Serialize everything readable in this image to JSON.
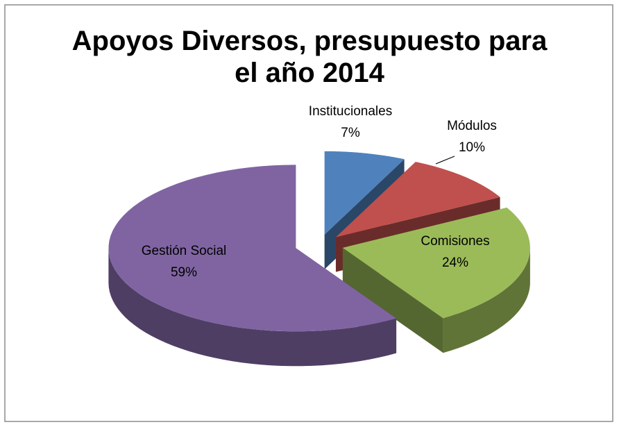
{
  "chart_data": {
    "type": "pie",
    "title": "Apoyos Diversos, presupuesto para el año 2014",
    "categories": [
      "Institucionales",
      "Módulos",
      "Comisiones",
      "Gestión Social"
    ],
    "values": [
      7,
      10,
      24,
      59
    ],
    "value_labels": [
      "7%",
      "10%",
      "24%",
      "59%"
    ],
    "colors": [
      "#4f81bd",
      "#c0504d",
      "#9bbb59",
      "#8064a2"
    ]
  }
}
